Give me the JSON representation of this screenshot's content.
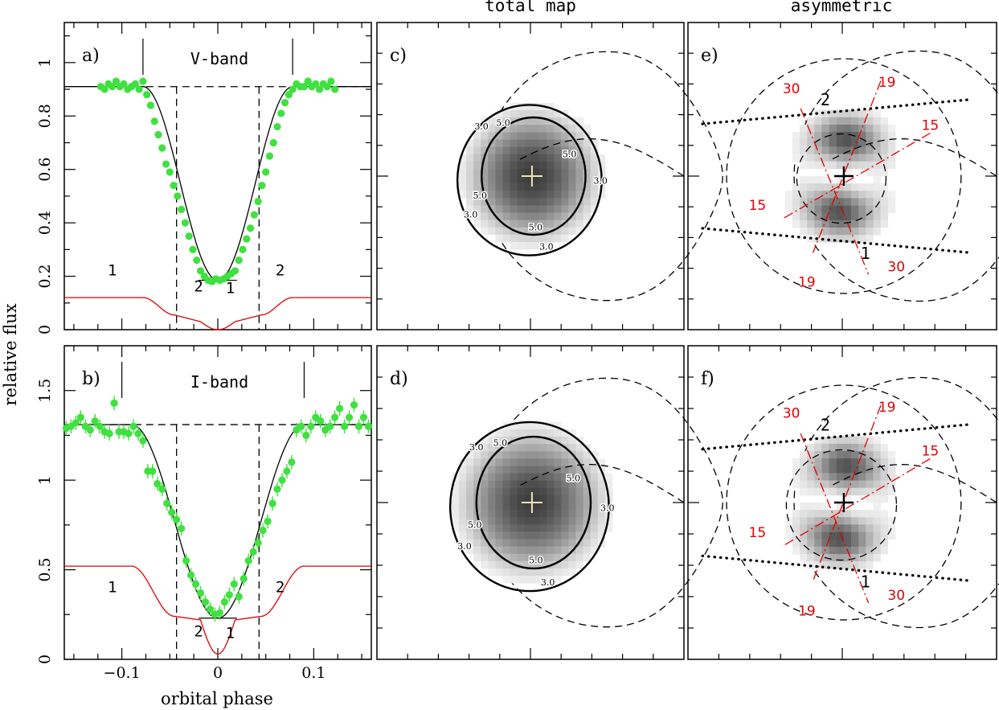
{
  "figure": {
    "y_axis_label": "relative flux",
    "x_axis_label": "orbital phase",
    "col_titles": {
      "total": "total map",
      "asym": "asymmetric"
    },
    "contour_labels": {
      "outer": "3.0",
      "inner": "5.0"
    },
    "az_labels": {
      "a": "30",
      "b": "19",
      "c": "15"
    },
    "stream_labels": {
      "one": "1",
      "two": "2"
    }
  },
  "chart_data": [
    {
      "id": "a",
      "panel_label": "a)",
      "band_label": "V-band",
      "type": "scatter",
      "xlim": [
        -0.16,
        0.16
      ],
      "ylim": [
        0,
        1.15
      ],
      "yticks": [
        0,
        0.2,
        0.4,
        0.6,
        0.8,
        1
      ],
      "ytick_labels": [
        "0",
        "0.2",
        "0.4",
        "0.6",
        "0.8",
        "1"
      ],
      "baseline": 0.91,
      "eclipse_min": 0.185,
      "disc_limits": [
        -0.043,
        0.043
      ],
      "ingress_egress": [
        -0.078,
        0.078
      ],
      "stream_markers": [
        "1",
        "2",
        "1",
        "2"
      ],
      "x": [
        -0.122,
        -0.118,
        -0.114,
        -0.11,
        -0.106,
        -0.102,
        -0.098,
        -0.094,
        -0.09,
        -0.086,
        -0.082,
        -0.078,
        -0.074,
        -0.07,
        -0.066,
        -0.062,
        -0.058,
        -0.054,
        -0.05,
        -0.046,
        -0.042,
        -0.038,
        -0.034,
        -0.03,
        -0.026,
        -0.022,
        -0.018,
        -0.014,
        -0.01,
        -0.006,
        -0.002,
        0.002,
        0.006,
        0.01,
        0.014,
        0.018,
        0.022,
        0.026,
        0.03,
        0.034,
        0.038,
        0.042,
        0.046,
        0.05,
        0.054,
        0.058,
        0.062,
        0.066,
        0.07,
        0.074,
        0.078,
        0.082,
        0.086,
        0.09,
        0.094,
        0.098,
        0.102,
        0.106,
        0.11,
        0.114,
        0.118,
        0.122
      ],
      "values": [
        0.91,
        0.9,
        0.92,
        0.91,
        0.93,
        0.91,
        0.92,
        0.9,
        0.91,
        0.92,
        0.9,
        0.93,
        0.88,
        0.84,
        0.78,
        0.73,
        0.68,
        0.62,
        0.59,
        0.54,
        0.5,
        0.45,
        0.4,
        0.35,
        0.3,
        0.26,
        0.22,
        0.2,
        0.185,
        0.18,
        0.19,
        0.185,
        0.19,
        0.2,
        0.21,
        0.22,
        0.26,
        0.3,
        0.34,
        0.38,
        0.43,
        0.48,
        0.54,
        0.59,
        0.65,
        0.7,
        0.76,
        0.81,
        0.85,
        0.88,
        0.9,
        0.92,
        0.91,
        0.91,
        0.93,
        0.91,
        0.92,
        0.9,
        0.92,
        0.91,
        0.93,
        0.9
      ],
      "errors": [
        0.012,
        0.012,
        0.012,
        0.012,
        0.012,
        0.012,
        0.012,
        0.012,
        0.012,
        0.012,
        0.012,
        0.012,
        0.012,
        0.012,
        0.012,
        0.012,
        0.012,
        0.012,
        0.012,
        0.012,
        0.012,
        0.012,
        0.012,
        0.012,
        0.012,
        0.012,
        0.012,
        0.012,
        0.012,
        0.012,
        0.012,
        0.012,
        0.012,
        0.012,
        0.012,
        0.012,
        0.012,
        0.012,
        0.012,
        0.012,
        0.012,
        0.012,
        0.012,
        0.012,
        0.012,
        0.012,
        0.012,
        0.012,
        0.012,
        0.012,
        0.012,
        0.012,
        0.012,
        0.012,
        0.012,
        0.012,
        0.012,
        0.012,
        0.012,
        0.012,
        0.012,
        0.012
      ],
      "component": {
        "level": 0.12,
        "step1": 0.055,
        "step2": 0.03,
        "min": 0.0
      }
    },
    {
      "id": "b",
      "panel_label": "b)",
      "band_label": "I-band",
      "type": "scatter",
      "xlim": [
        -0.16,
        0.16
      ],
      "ylim": [
        0,
        1.75
      ],
      "yticks": [
        0,
        0.5,
        1,
        1.5
      ],
      "ytick_labels": [
        "0",
        "0.5",
        "1",
        "1.5"
      ],
      "xticks": [
        -0.1,
        0,
        0.1
      ],
      "xtick_labels": [
        "−0.1",
        "0",
        "0.1"
      ],
      "baseline": 1.31,
      "eclipse_min": 0.23,
      "disc_limits": [
        -0.043,
        0.043
      ],
      "ingress_egress": [
        -0.1,
        0.09
      ],
      "stream_markers": [
        "1",
        "2",
        "1",
        "2"
      ],
      "x": [
        -0.158,
        -0.153,
        -0.148,
        -0.143,
        -0.138,
        -0.133,
        -0.128,
        -0.123,
        -0.118,
        -0.113,
        -0.108,
        -0.103,
        -0.098,
        -0.093,
        -0.088,
        -0.083,
        -0.078,
        -0.073,
        -0.068,
        -0.063,
        -0.058,
        -0.053,
        -0.048,
        -0.043,
        -0.038,
        -0.033,
        -0.028,
        -0.023,
        -0.018,
        -0.013,
        -0.008,
        -0.003,
        0.002,
        0.007,
        0.012,
        0.017,
        0.022,
        0.027,
        0.032,
        0.037,
        0.042,
        0.047,
        0.052,
        0.057,
        0.062,
        0.067,
        0.072,
        0.077,
        0.082,
        0.087,
        0.092,
        0.097,
        0.102,
        0.107,
        0.112,
        0.117,
        0.122,
        0.127,
        0.132,
        0.137,
        0.142,
        0.147,
        0.152,
        0.157
      ],
      "values": [
        1.29,
        1.3,
        1.32,
        1.35,
        1.3,
        1.28,
        1.33,
        1.3,
        1.27,
        1.26,
        1.43,
        1.27,
        1.27,
        1.26,
        1.3,
        1.26,
        1.22,
        1.05,
        1.05,
        0.98,
        0.95,
        0.87,
        0.82,
        0.78,
        0.73,
        0.55,
        0.47,
        0.42,
        0.37,
        0.32,
        0.28,
        0.25,
        0.26,
        0.32,
        0.36,
        0.42,
        0.35,
        0.45,
        0.55,
        0.6,
        0.65,
        0.72,
        0.77,
        0.87,
        0.95,
        1.0,
        1.05,
        1.1,
        1.28,
        1.3,
        1.25,
        1.3,
        1.35,
        1.33,
        1.28,
        1.3,
        1.35,
        1.4,
        1.3,
        1.35,
        1.42,
        1.3,
        1.35,
        1.3
      ],
      "errors": [
        0.04,
        0.04,
        0.04,
        0.04,
        0.04,
        0.04,
        0.04,
        0.04,
        0.04,
        0.04,
        0.04,
        0.04,
        0.04,
        0.04,
        0.04,
        0.04,
        0.04,
        0.04,
        0.04,
        0.04,
        0.04,
        0.04,
        0.04,
        0.04,
        0.04,
        0.04,
        0.04,
        0.04,
        0.04,
        0.04,
        0.04,
        0.04,
        0.04,
        0.04,
        0.04,
        0.04,
        0.04,
        0.04,
        0.04,
        0.04,
        0.04,
        0.04,
        0.04,
        0.04,
        0.04,
        0.04,
        0.04,
        0.04,
        0.04,
        0.04,
        0.04,
        0.04,
        0.04,
        0.04,
        0.04,
        0.04,
        0.04,
        0.04,
        0.04,
        0.04,
        0.04,
        0.04,
        0.04,
        0.04
      ],
      "component": {
        "level": 0.52,
        "step1": 0.24,
        "step2": 0.22,
        "min": 0.03
      }
    },
    {
      "id": "c",
      "panel_label": "c)",
      "type": "heatmap",
      "map": "total",
      "disc_scale": 1.0
    },
    {
      "id": "d",
      "panel_label": "d)",
      "type": "heatmap",
      "map": "total",
      "disc_scale": 1.1
    },
    {
      "id": "e",
      "panel_label": "e)",
      "type": "heatmap",
      "map": "asymmetric",
      "disc_scale": 0.85
    },
    {
      "id": "f",
      "panel_label": "f)",
      "type": "heatmap",
      "map": "asymmetric",
      "disc_scale": 1.05
    }
  ]
}
